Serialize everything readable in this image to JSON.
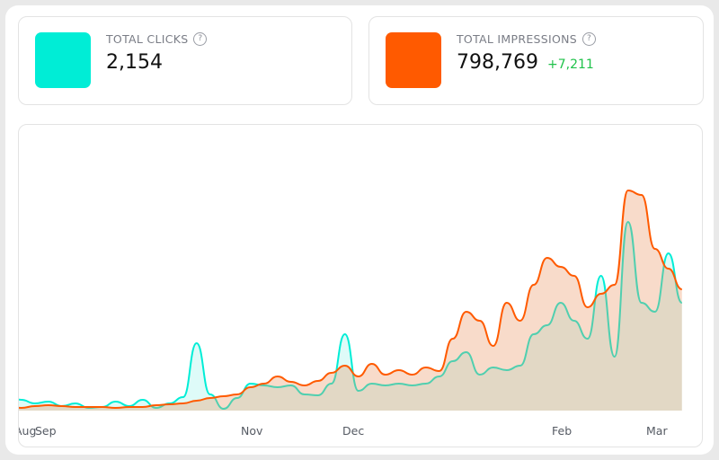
{
  "cards": [
    {
      "label": "TOTAL CLICKS",
      "value": "2,154",
      "color": "#00EDD6",
      "help_icon": "question-circle-icon"
    },
    {
      "label": "TOTAL IMPRESSIONS",
      "value": "798,769",
      "delta": "+7,211",
      "color": "#FF5A00",
      "help_icon": "question-circle-icon"
    }
  ],
  "chart_data": {
    "type": "area",
    "x_tick_labels": [
      "Aug",
      "Sep",
      "Nov",
      "Dec",
      "Feb",
      "Mar"
    ],
    "grid": false,
    "y_axis_shown": false,
    "x": [
      "Aug 25",
      "Aug 29",
      "Sep 2",
      "Sep 6",
      "Sep 10",
      "Sep 14",
      "Sep 18",
      "Sep 22",
      "Sep 26",
      "Sep 30",
      "Oct 4",
      "Oct 8",
      "Oct 12",
      "Oct 16",
      "Oct 20",
      "Oct 24",
      "Oct 28",
      "Nov 1",
      "Nov 5",
      "Nov 9",
      "Nov 13",
      "Nov 17",
      "Nov 21",
      "Nov 25",
      "Nov 29",
      "Dec 3",
      "Dec 7",
      "Dec 11",
      "Dec 15",
      "Dec 19",
      "Dec 23",
      "Dec 27",
      "Dec 31",
      "Jan 4",
      "Jan 8",
      "Jan 12",
      "Jan 16",
      "Jan 20",
      "Jan 24",
      "Jan 28",
      "Feb 1",
      "Feb 5",
      "Feb 9",
      "Feb 13",
      "Feb 17",
      "Feb 21",
      "Feb 25",
      "Mar 1",
      "Mar 5",
      "Mar 9",
      "Mar 13"
    ],
    "series": [
      {
        "key": "clicks",
        "color": "#00EDD6",
        "values": [
          15,
          12,
          8,
          10,
          5,
          8,
          3,
          4,
          10,
          5,
          12,
          3,
          8,
          15,
          75,
          18,
          2,
          14,
          30,
          28,
          26,
          28,
          18,
          17,
          30,
          85,
          22,
          30,
          28,
          30,
          28,
          30,
          38,
          55,
          65,
          40,
          48,
          45,
          50,
          85,
          95,
          120,
          100,
          80,
          150,
          60,
          210,
          120,
          110,
          175,
          120
        ]
      },
      {
        "key": "impressions",
        "color": "#FF5A00",
        "values": [
          4,
          3,
          5,
          6,
          5,
          4,
          4,
          4,
          3,
          4,
          4,
          6,
          7,
          8,
          11,
          14,
          16,
          18,
          26,
          30,
          38,
          32,
          28,
          33,
          42,
          50,
          38,
          52,
          40,
          45,
          40,
          48,
          44,
          80,
          110,
          100,
          72,
          120,
          100,
          140,
          170,
          160,
          150,
          115,
          130,
          140,
          245,
          240,
          180,
          158,
          135
        ]
      }
    ]
  }
}
